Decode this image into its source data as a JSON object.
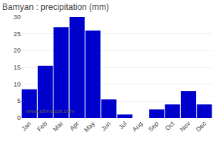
{
  "chart_data": {
    "type": "bar",
    "title": "Bamyan : precipitation (mm)",
    "categories": [
      "Jan",
      "Feb",
      "Mar",
      "Apr",
      "May",
      "Jun",
      "Jul",
      "Aug",
      "Sep",
      "Oct",
      "Nov",
      "Dec"
    ],
    "values": [
      8.5,
      15.5,
      27.0,
      30.0,
      26.0,
      5.5,
      1.0,
      0.0,
      2.5,
      4.0,
      8.0,
      4.0
    ],
    "color": "#0000CC",
    "ylim": [
      0,
      30
    ],
    "yticks": [
      0,
      5,
      10,
      15,
      20,
      25,
      30
    ],
    "grid": true,
    "annotations": [
      "www.allmetsat.com"
    ]
  }
}
